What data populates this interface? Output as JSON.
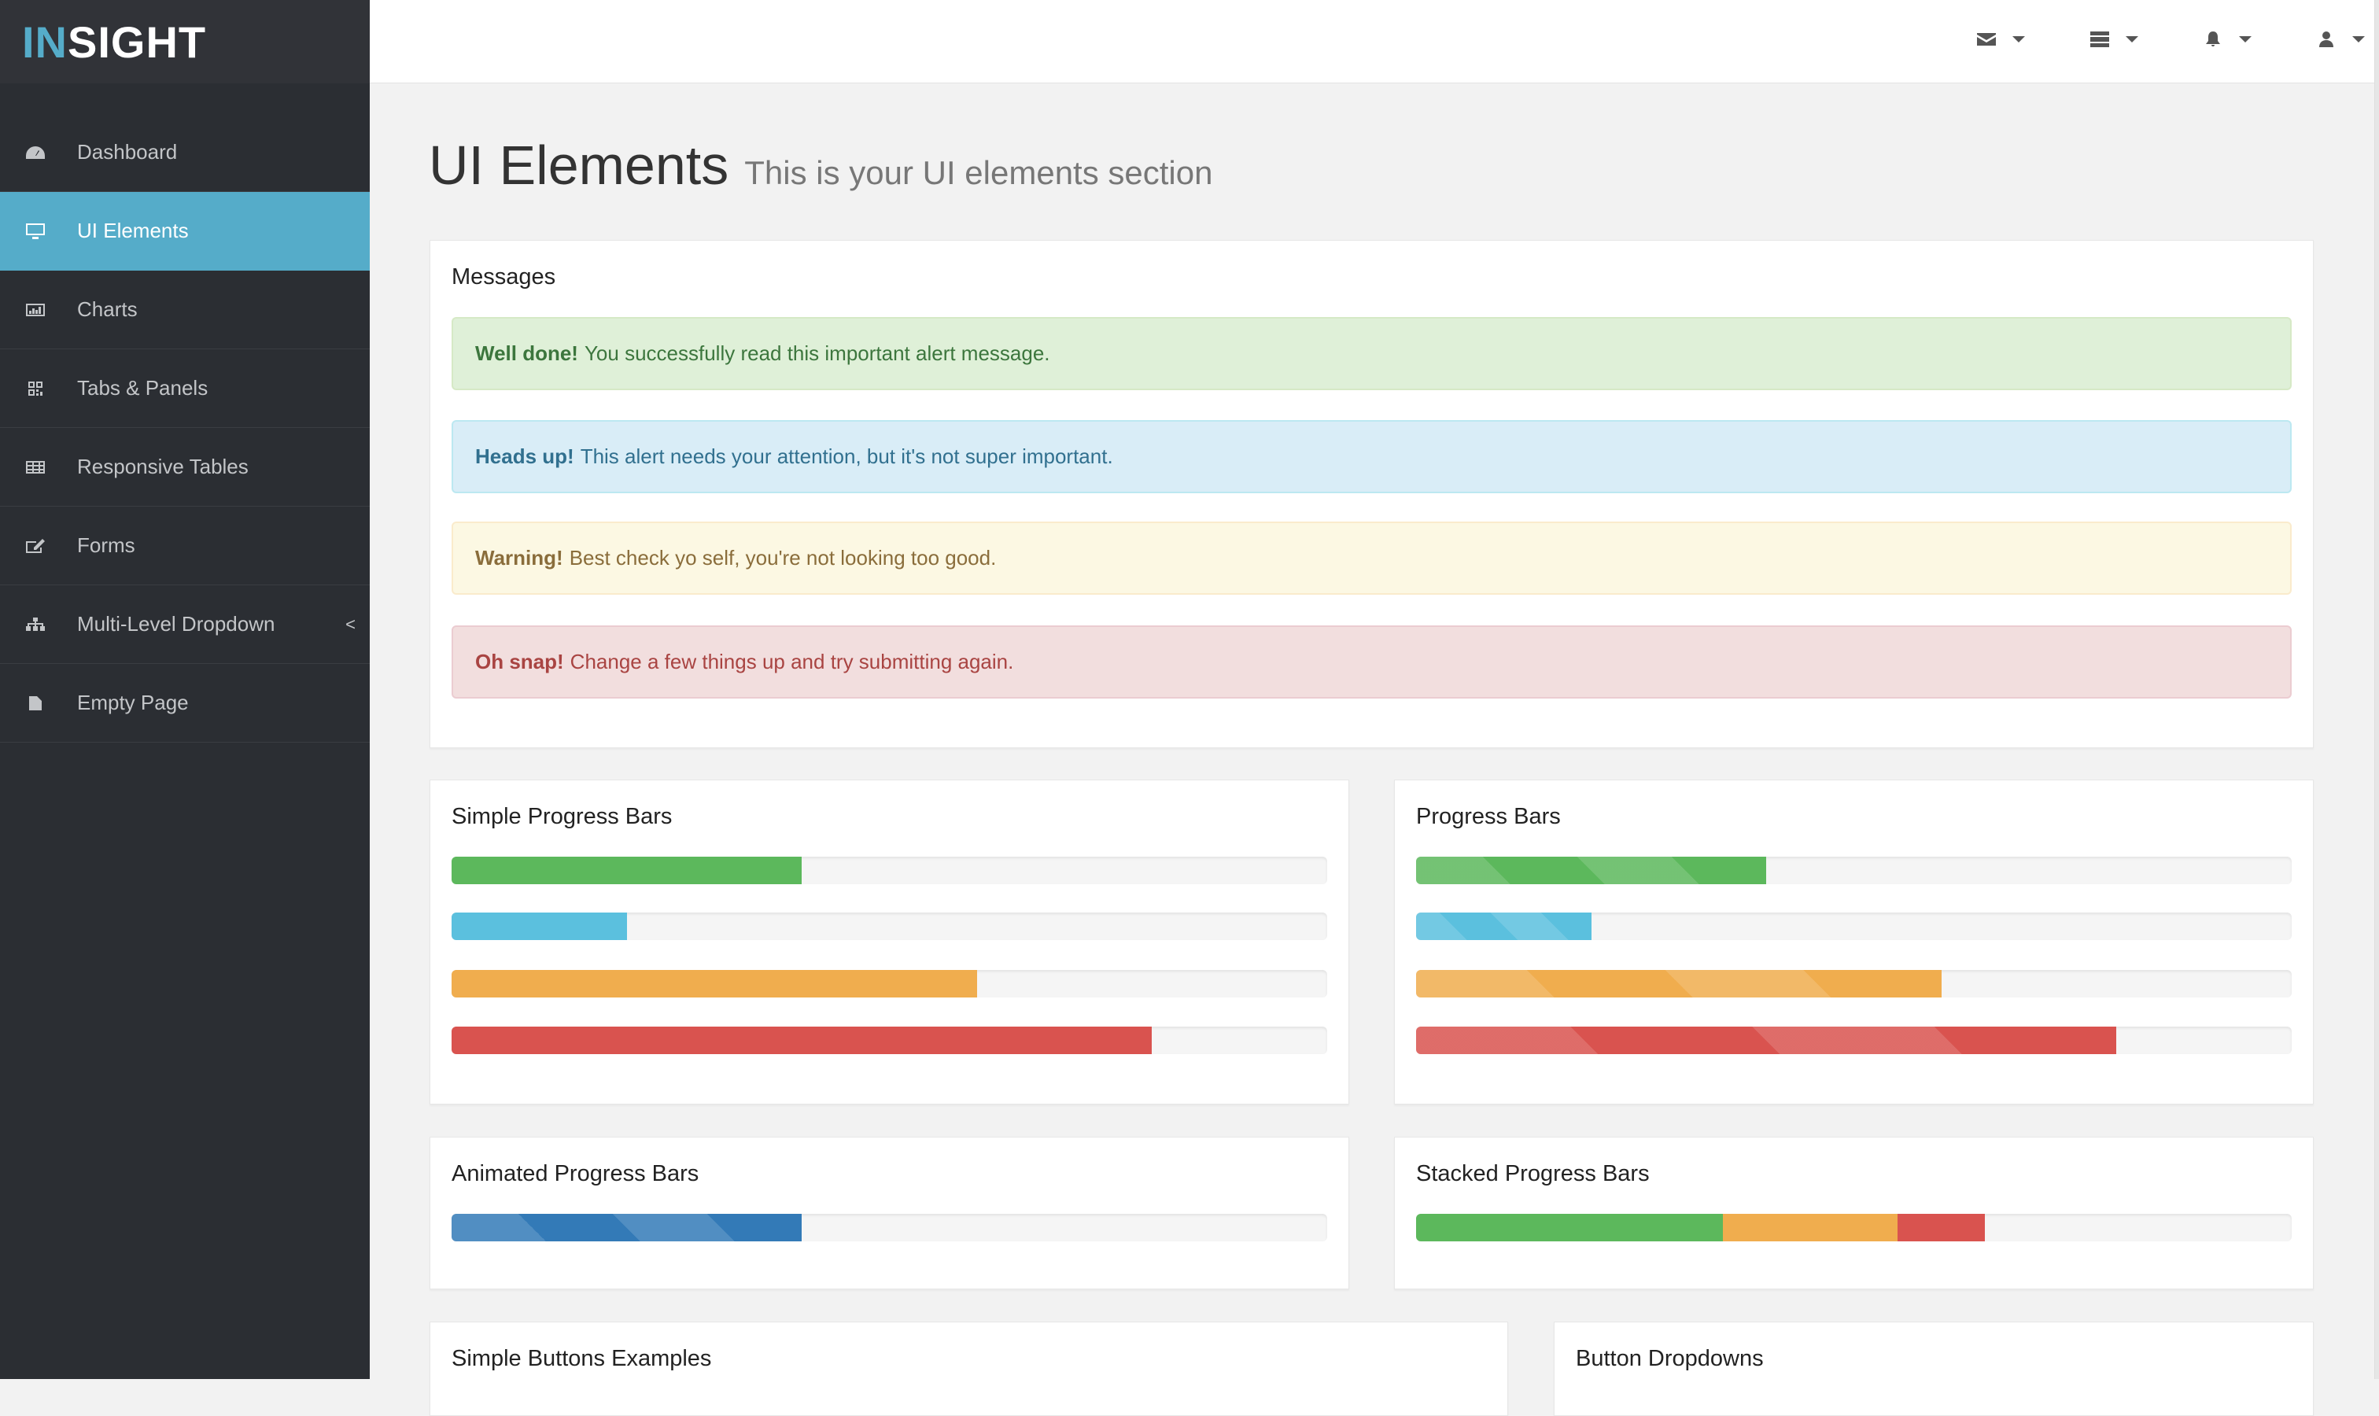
{
  "app": {
    "logo_accent": "IN",
    "logo_rest": "SIGHT",
    "accent_color": "#55acc9"
  },
  "sidebar": {
    "items": [
      {
        "label": "Dashboard",
        "icon": "dashboard-icon"
      },
      {
        "label": "UI Elements",
        "icon": "desktop-icon",
        "active": true
      },
      {
        "label": "Charts",
        "icon": "bar-chart-icon"
      },
      {
        "label": "Tabs & Panels",
        "icon": "qrcode-icon"
      },
      {
        "label": "Responsive Tables",
        "icon": "table-icon"
      },
      {
        "label": "Forms",
        "icon": "edit-icon"
      },
      {
        "label": "Multi-Level Dropdown",
        "icon": "sitemap-icon",
        "chevron": "<"
      },
      {
        "label": "Empty Page",
        "icon": "file-icon"
      }
    ]
  },
  "topbar": {
    "icons": [
      "envelope-icon",
      "tasks-icon",
      "bell-icon",
      "user-icon"
    ]
  },
  "page": {
    "title": "UI Elements",
    "subtitle": "This is your UI elements section"
  },
  "messages": {
    "title": "Messages",
    "alerts": [
      {
        "strong": "Well done!",
        "text": "You successfully read this important alert message.",
        "type": "success"
      },
      {
        "strong": "Heads up!",
        "text": "This alert needs your attention, but it's not super important.",
        "type": "info"
      },
      {
        "strong": "Warning!",
        "text": "Best check yo self, you're not looking too good.",
        "type": "warning"
      },
      {
        "strong": "Oh snap!",
        "text": "Change a few things up and try submitting again.",
        "type": "danger"
      }
    ]
  },
  "colors": {
    "success": "#5cb85c",
    "info": "#5bc0de",
    "warning": "#f0ad4e",
    "danger": "#d9534f",
    "primary": "#337ab7"
  },
  "simple_progress": {
    "title": "Simple Progress Bars",
    "bars": [
      40,
      20,
      60,
      80
    ]
  },
  "striped_progress": {
    "title": "Progress Bars",
    "bars": [
      40,
      20,
      60,
      80
    ]
  },
  "animated_progress": {
    "title": "Animated Progress Bars",
    "bars": [
      40
    ]
  },
  "stacked_progress": {
    "title": "Stacked Progress Bars",
    "segments": [
      35,
      20,
      10
    ]
  },
  "buttons": {
    "title": "Simple Buttons Examples"
  },
  "dropdowns": {
    "title": "Button Dropdowns"
  }
}
